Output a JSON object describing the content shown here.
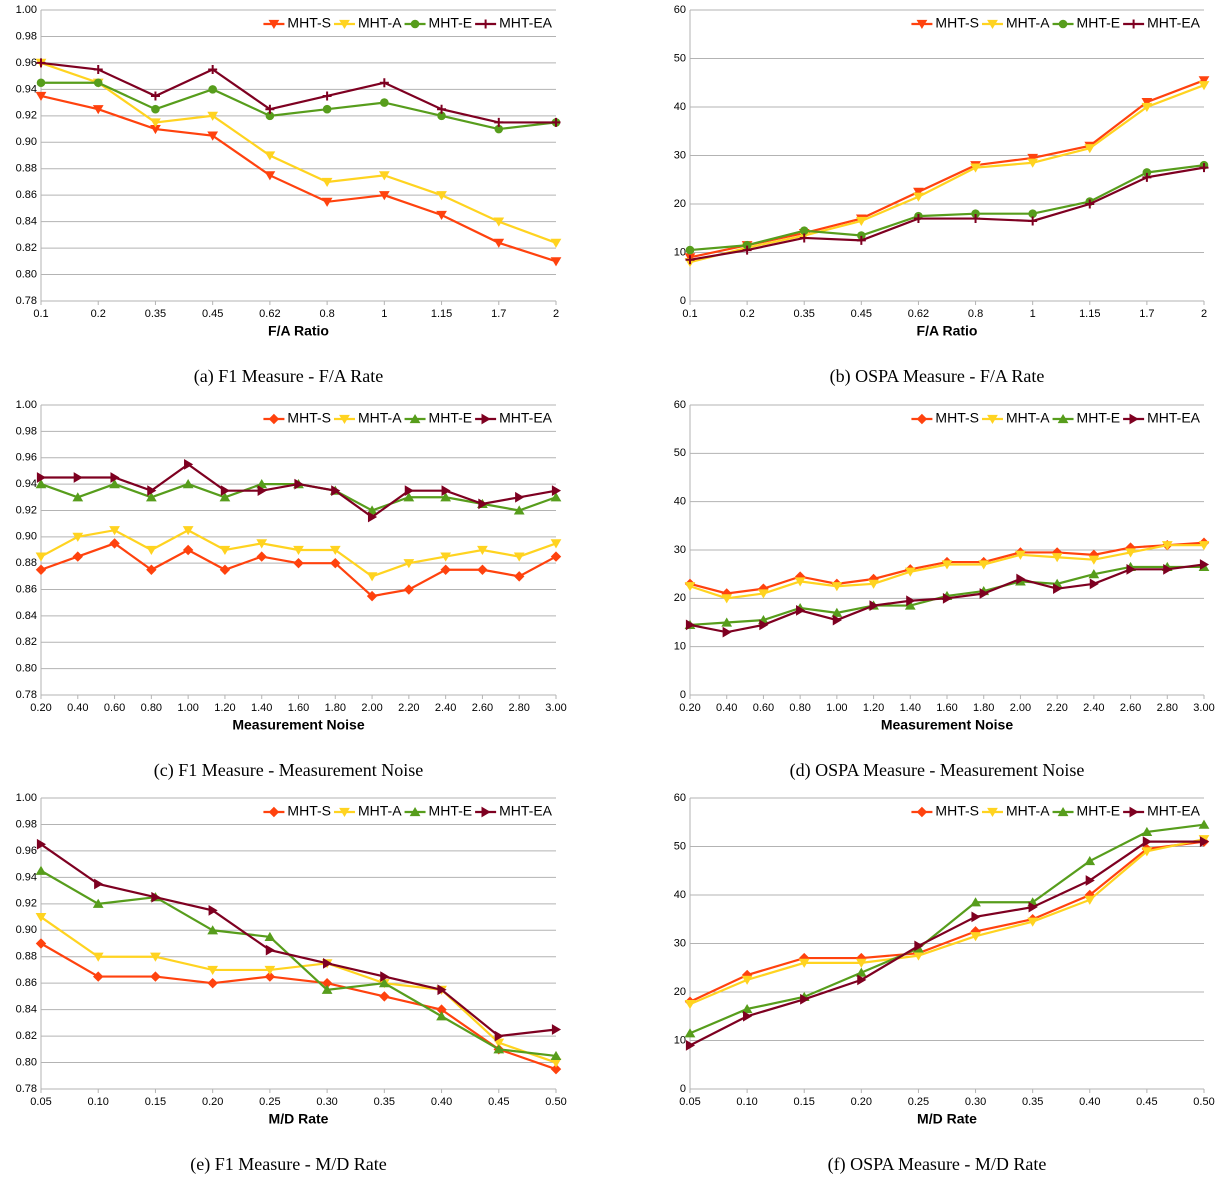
{
  "chart_data": [
    {
      "type": "line",
      "caption": "(a) F1 Measure - F/A Rate",
      "xlabel": "F/A Ratio",
      "categories": [
        "0.1",
        "0.2",
        "0.35",
        "0.45",
        "0.62",
        "0.8",
        "1",
        "1.15",
        "1.7",
        "2"
      ],
      "ylim": [
        0.78,
        1.0
      ],
      "yticks": [
        {
          "value": 0.78,
          "label": "0.78"
        },
        {
          "value": 0.8,
          "label": "0.80"
        },
        {
          "value": 0.82,
          "label": "0.82"
        },
        {
          "value": 0.84,
          "label": "0.84"
        },
        {
          "value": 0.86,
          "label": "0.86"
        },
        {
          "value": 0.88,
          "label": "0.88"
        },
        {
          "value": 0.9,
          "label": "0.90"
        },
        {
          "value": 0.92,
          "label": "0.92"
        },
        {
          "value": 0.94,
          "label": "0.94"
        },
        {
          "value": 0.96,
          "label": "0.96"
        },
        {
          "value": 0.98,
          "label": "0.98"
        },
        {
          "value": 1.0,
          "label": "1.00"
        }
      ],
      "grid": true,
      "legend": "top-right",
      "series": [
        {
          "name": "MHT-S",
          "color": "#ff420e",
          "marker": "triangle-down",
          "values": [
            0.935,
            0.925,
            0.91,
            0.905,
            0.875,
            0.855,
            0.86,
            0.845,
            0.824,
            0.81
          ]
        },
        {
          "name": "MHT-A",
          "color": "#ffd320",
          "marker": "triangle-down",
          "values": [
            0.96,
            0.945,
            0.915,
            0.92,
            0.89,
            0.87,
            0.875,
            0.86,
            0.84,
            0.824
          ]
        },
        {
          "name": "MHT-E",
          "color": "#579d1c",
          "marker": "circle",
          "values": [
            0.945,
            0.945,
            0.925,
            0.94,
            0.92,
            0.925,
            0.93,
            0.92,
            0.91,
            0.915
          ]
        },
        {
          "name": "MHT-EA",
          "color": "#7e0021",
          "marker": "plus",
          "values": [
            0.96,
            0.955,
            0.935,
            0.955,
            0.925,
            0.935,
            0.945,
            0.925,
            0.915,
            0.915
          ]
        }
      ]
    },
    {
      "type": "line",
      "caption": "(b) OSPA Measure - F/A Rate",
      "xlabel": "F/A Ratio",
      "categories": [
        "0.1",
        "0.2",
        "0.35",
        "0.45",
        "0.62",
        "0.8",
        "1",
        "1.15",
        "1.7",
        "2"
      ],
      "ylim": [
        0,
        60
      ],
      "yticks": [
        0,
        10,
        20,
        30,
        40,
        50,
        60
      ],
      "grid": true,
      "legend": "top-right",
      "series": [
        {
          "name": "MHT-S",
          "color": "#ff420e",
          "marker": "triangle-down",
          "values": [
            9,
            11.5,
            14,
            17,
            22.5,
            28,
            29.5,
            32,
            41,
            45.5
          ]
        },
        {
          "name": "MHT-A",
          "color": "#ffd320",
          "marker": "triangle-down",
          "values": [
            8,
            11,
            13.5,
            16.5,
            21.5,
            27.5,
            28.5,
            31.5,
            40,
            44.5
          ]
        },
        {
          "name": "MHT-E",
          "color": "#579d1c",
          "marker": "circle",
          "values": [
            10.5,
            11.5,
            14.5,
            13.5,
            17.5,
            18,
            18,
            20.5,
            26.5,
            28
          ]
        },
        {
          "name": "MHT-EA",
          "color": "#7e0021",
          "marker": "plus",
          "values": [
            8.5,
            10.5,
            13,
            12.5,
            17,
            17,
            16.5,
            20,
            25.5,
            27.5
          ]
        }
      ]
    },
    {
      "type": "line",
      "caption": "(c) F1 Measure - Measurement Noise",
      "xlabel": "Measurement Noise",
      "categories": [
        "0.20",
        "0.40",
        "0.60",
        "0.80",
        "1.00",
        "1.20",
        "1.40",
        "1.60",
        "1.80",
        "2.00",
        "2.20",
        "2.40",
        "2.60",
        "2.80",
        "3.00"
      ],
      "ylim": [
        0.78,
        1.0
      ],
      "yticks": [
        {
          "value": 0.78,
          "label": "0.78"
        },
        {
          "value": 0.8,
          "label": "0.80"
        },
        {
          "value": 0.82,
          "label": "0.82"
        },
        {
          "value": 0.84,
          "label": "0.84"
        },
        {
          "value": 0.86,
          "label": "0.86"
        },
        {
          "value": 0.88,
          "label": "0.88"
        },
        {
          "value": 0.9,
          "label": "0.90"
        },
        {
          "value": 0.92,
          "label": "0.92"
        },
        {
          "value": 0.94,
          "label": "0.94"
        },
        {
          "value": 0.96,
          "label": "0.96"
        },
        {
          "value": 0.98,
          "label": "0.98"
        },
        {
          "value": 1.0,
          "label": "1.00"
        }
      ],
      "grid": true,
      "legend": "top-right",
      "series": [
        {
          "name": "MHT-S",
          "color": "#ff420e",
          "marker": "diamond",
          "values": [
            0.875,
            0.885,
            0.895,
            0.875,
            0.89,
            0.875,
            0.885,
            0.88,
            0.88,
            0.855,
            0.86,
            0.875,
            0.875,
            0.87,
            0.885
          ]
        },
        {
          "name": "MHT-A",
          "color": "#ffd320",
          "marker": "triangle-down",
          "values": [
            0.885,
            0.9,
            0.905,
            0.89,
            0.905,
            0.89,
            0.895,
            0.89,
            0.89,
            0.87,
            0.88,
            0.885,
            0.89,
            0.885,
            0.895
          ]
        },
        {
          "name": "MHT-E",
          "color": "#579d1c",
          "marker": "triangle-up",
          "values": [
            0.94,
            0.93,
            0.94,
            0.93,
            0.94,
            0.93,
            0.94,
            0.94,
            0.935,
            0.92,
            0.93,
            0.93,
            0.925,
            0.92,
            0.93
          ]
        },
        {
          "name": "MHT-EA",
          "color": "#7e0021",
          "marker": "triangle-right",
          "values": [
            0.945,
            0.945,
            0.945,
            0.935,
            0.955,
            0.935,
            0.935,
            0.94,
            0.935,
            0.915,
            0.935,
            0.935,
            0.925,
            0.93,
            0.935
          ]
        }
      ]
    },
    {
      "type": "line",
      "caption": "(d) OSPA Measure - Measurement Noise",
      "xlabel": "Measurement Noise",
      "categories": [
        "0.20",
        "0.40",
        "0.60",
        "0.80",
        "1.00",
        "1.20",
        "1.40",
        "1.60",
        "1.80",
        "2.00",
        "2.20",
        "2.40",
        "2.60",
        "2.80",
        "3.00"
      ],
      "ylim": [
        0,
        60
      ],
      "yticks": [
        0,
        10,
        20,
        30,
        40,
        50,
        60
      ],
      "grid": true,
      "legend": "top-right",
      "series": [
        {
          "name": "MHT-S",
          "color": "#ff420e",
          "marker": "diamond",
          "values": [
            23,
            21,
            22,
            24.5,
            23,
            24,
            26,
            27.5,
            27.5,
            29.5,
            29.5,
            29,
            30.5,
            31,
            31.5
          ]
        },
        {
          "name": "MHT-A",
          "color": "#ffd320",
          "marker": "triangle-down",
          "values": [
            22.5,
            20,
            21,
            23.5,
            22.5,
            23,
            25.5,
            27,
            27,
            29,
            28.5,
            28,
            29.5,
            31,
            31
          ]
        },
        {
          "name": "MHT-E",
          "color": "#579d1c",
          "marker": "triangle-up",
          "values": [
            14.5,
            15,
            15.5,
            18,
            17,
            18.5,
            18.5,
            20.5,
            21.5,
            23.5,
            23,
            25,
            26.5,
            26.5,
            26.5
          ]
        },
        {
          "name": "MHT-EA",
          "color": "#7e0021",
          "marker": "triangle-right",
          "values": [
            14.5,
            13,
            14.5,
            17.5,
            15.5,
            18.5,
            19.5,
            20,
            21,
            24,
            22,
            23,
            26,
            26,
            27
          ]
        }
      ]
    },
    {
      "type": "line",
      "caption": "(e) F1 Measure - M/D Rate",
      "xlabel": "M/D Rate",
      "categories": [
        "0.05",
        "0.10",
        "0.15",
        "0.20",
        "0.25",
        "0.30",
        "0.35",
        "0.40",
        "0.45",
        "0.50"
      ],
      "ylim": [
        0.78,
        1.0
      ],
      "yticks": [
        {
          "value": 0.78,
          "label": "0.78"
        },
        {
          "value": 0.8,
          "label": "0.80"
        },
        {
          "value": 0.82,
          "label": "0.82"
        },
        {
          "value": 0.84,
          "label": "0.84"
        },
        {
          "value": 0.86,
          "label": "0.86"
        },
        {
          "value": 0.88,
          "label": "0.88"
        },
        {
          "value": 0.9,
          "label": "0.90"
        },
        {
          "value": 0.92,
          "label": "0.92"
        },
        {
          "value": 0.94,
          "label": "0.94"
        },
        {
          "value": 0.96,
          "label": "0.96"
        },
        {
          "value": 0.98,
          "label": "0.98"
        },
        {
          "value": 1.0,
          "label": "1.00"
        }
      ],
      "grid": true,
      "legend": "top-right",
      "series": [
        {
          "name": "MHT-S",
          "color": "#ff420e",
          "marker": "diamond",
          "values": [
            0.89,
            0.865,
            0.865,
            0.86,
            0.865,
            0.86,
            0.85,
            0.84,
            0.81,
            0.795
          ]
        },
        {
          "name": "MHT-A",
          "color": "#ffd320",
          "marker": "triangle-down",
          "values": [
            0.91,
            0.88,
            0.88,
            0.87,
            0.87,
            0.875,
            0.86,
            0.855,
            0.815,
            0.8
          ]
        },
        {
          "name": "MHT-E",
          "color": "#579d1c",
          "marker": "triangle-up",
          "values": [
            0.945,
            0.92,
            0.925,
            0.9,
            0.895,
            0.855,
            0.86,
            0.835,
            0.81,
            0.805
          ]
        },
        {
          "name": "MHT-EA",
          "color": "#7e0021",
          "marker": "triangle-right",
          "values": [
            0.965,
            0.935,
            0.925,
            0.915,
            0.885,
            0.875,
            0.865,
            0.855,
            0.82,
            0.825
          ]
        }
      ]
    },
    {
      "type": "line",
      "caption": "(f) OSPA Measure - M/D Rate",
      "xlabel": "M/D Rate",
      "categories": [
        "0.05",
        "0.10",
        "0.15",
        "0.20",
        "0.25",
        "0.30",
        "0.35",
        "0.40",
        "0.45",
        "0.50"
      ],
      "ylim": [
        0,
        60
      ],
      "yticks": [
        0,
        10,
        20,
        30,
        40,
        50,
        60
      ],
      "grid": true,
      "legend": "top-right",
      "series": [
        {
          "name": "MHT-S",
          "color": "#ff420e",
          "marker": "diamond",
          "values": [
            18,
            23.5,
            27,
            27,
            28,
            32.5,
            35,
            40,
            49.5,
            51
          ]
        },
        {
          "name": "MHT-A",
          "color": "#ffd320",
          "marker": "triangle-down",
          "values": [
            17.5,
            22.5,
            26,
            26,
            27.5,
            31.5,
            34.5,
            39,
            49,
            51.5
          ]
        },
        {
          "name": "MHT-E",
          "color": "#579d1c",
          "marker": "triangle-up",
          "values": [
            11.5,
            16.5,
            19,
            24,
            29,
            38.5,
            38.5,
            47,
            53,
            54.5
          ]
        },
        {
          "name": "MHT-EA",
          "color": "#7e0021",
          "marker": "triangle-right",
          "values": [
            9,
            15,
            18.5,
            22.5,
            29.5,
            35.5,
            37.5,
            43,
            51,
            51
          ]
        }
      ]
    }
  ]
}
